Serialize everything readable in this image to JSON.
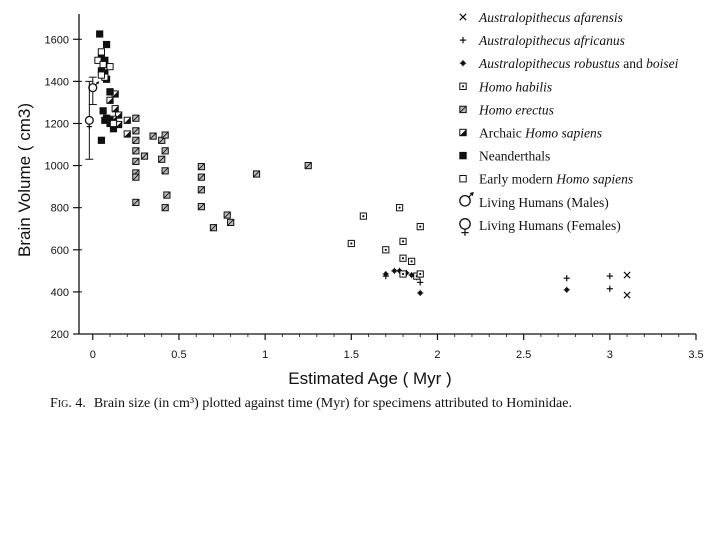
{
  "chart_data": {
    "type": "scatter",
    "xlabel": "Estimated Age ( Myr )",
    "ylabel": "Brain Volume ( cm3)",
    "xlim": [
      -0.08,
      3.5
    ],
    "ylim": [
      200,
      1720
    ],
    "xticks": [
      0,
      0.5,
      1,
      1.5,
      2,
      2.5,
      3,
      3.5
    ],
    "xtick_labels": [
      "0",
      "0.5",
      "1",
      "1.5",
      "2",
      "2.5",
      "3",
      "3.5"
    ],
    "yticks": [
      200,
      400,
      600,
      800,
      1000,
      1200,
      1400,
      1600
    ],
    "ytick_labels": [
      "200",
      "400",
      "600",
      "800",
      "1000",
      "1200",
      "1400",
      "1600"
    ],
    "legend_position": "top-right",
    "series": [
      {
        "name": "Australopithecus afarensis",
        "marker": "x",
        "points": [
          [
            3.1,
            480
          ],
          [
            3.1,
            385
          ]
        ]
      },
      {
        "name": "Australopithecus africanus",
        "marker": "plus",
        "points": [
          [
            2.75,
            465
          ],
          [
            3.0,
            475
          ],
          [
            3.0,
            415
          ],
          [
            1.9,
            445
          ],
          [
            1.7,
            475
          ]
        ]
      },
      {
        "name": "Australopithecus robustus and boisei",
        "marker": "asterisk",
        "points": [
          [
            1.7,
            485
          ],
          [
            1.75,
            500
          ],
          [
            1.78,
            500
          ],
          [
            1.82,
            490
          ],
          [
            1.85,
            480
          ],
          [
            1.88,
            470
          ],
          [
            1.9,
            395
          ],
          [
            2.75,
            410
          ]
        ]
      },
      {
        "name": "Homo habilis",
        "marker": "dot-square",
        "points": [
          [
            1.5,
            630
          ],
          [
            1.57,
            760
          ],
          [
            1.7,
            600
          ],
          [
            1.78,
            800
          ],
          [
            1.8,
            640
          ],
          [
            1.8,
            560
          ],
          [
            1.85,
            545
          ],
          [
            1.88,
            475
          ],
          [
            1.9,
            710
          ],
          [
            1.9,
            485
          ],
          [
            1.8,
            485
          ]
        ]
      },
      {
        "name": "Homo erectus",
        "marker": "hatch-square",
        "points": [
          [
            0.25,
            1225
          ],
          [
            0.25,
            1165
          ],
          [
            0.25,
            1120
          ],
          [
            0.25,
            1070
          ],
          [
            0.25,
            1020
          ],
          [
            0.25,
            965
          ],
          [
            0.25,
            945
          ],
          [
            0.25,
            825
          ],
          [
            0.3,
            1045
          ],
          [
            0.35,
            1140
          ],
          [
            0.4,
            1120
          ],
          [
            0.4,
            1030
          ],
          [
            0.42,
            1145
          ],
          [
            0.42,
            1070
          ],
          [
            0.42,
            975
          ],
          [
            0.43,
            860
          ],
          [
            0.42,
            800
          ],
          [
            0.63,
            995
          ],
          [
            0.63,
            945
          ],
          [
            0.63,
            885
          ],
          [
            0.63,
            805
          ],
          [
            0.7,
            705
          ],
          [
            0.78,
            765
          ],
          [
            0.8,
            730
          ],
          [
            0.95,
            960
          ],
          [
            1.25,
            1000
          ]
        ]
      },
      {
        "name": "Archaic Homo sapiens",
        "marker": "tri-square",
        "points": [
          [
            0.2,
            1215
          ],
          [
            0.15,
            1240
          ],
          [
            0.15,
            1195
          ],
          [
            0.13,
            1270
          ],
          [
            0.13,
            1340
          ],
          [
            0.1,
            1310
          ],
          [
            0.12,
            1220
          ],
          [
            0.2,
            1150
          ],
          [
            0.1,
            1350
          ]
        ]
      },
      {
        "name": "Neanderthals",
        "marker": "filled-square",
        "points": [
          [
            0.04,
            1625
          ],
          [
            0.05,
            1510
          ],
          [
            0.06,
            1480
          ],
          [
            0.05,
            1450
          ],
          [
            0.07,
            1500
          ],
          [
            0.08,
            1575
          ],
          [
            0.07,
            1440
          ],
          [
            0.08,
            1410
          ],
          [
            0.1,
            1350
          ],
          [
            0.06,
            1260
          ],
          [
            0.07,
            1215
          ],
          [
            0.08,
            1225
          ],
          [
            0.1,
            1215
          ],
          [
            0.12,
            1175
          ],
          [
            0.1,
            1200
          ],
          [
            0.05,
            1120
          ]
        ]
      },
      {
        "name": "Early modern Homo sapiens",
        "marker": "open-square",
        "points": [
          [
            0.03,
            1500
          ],
          [
            0.05,
            1540
          ],
          [
            0.06,
            1480
          ],
          [
            0.1,
            1470
          ],
          [
            0.07,
            1420
          ],
          [
            0.05,
            1430
          ],
          [
            0.12,
            1200
          ]
        ]
      },
      {
        "name": "Living Humans (Males)",
        "marker": "male",
        "points": [
          [
            0.0,
            1370
          ]
        ],
        "error": [
          [
            0.0,
            1290,
            1420
          ]
        ]
      },
      {
        "name": "Living Humans (Females)",
        "marker": "female",
        "points": [
          [
            -0.02,
            1215
          ]
        ],
        "error": [
          [
            -0.02,
            1030,
            1400
          ]
        ]
      }
    ]
  },
  "legend_labels": [
    {
      "parts": [
        {
          "t": "Australopithecus afarensis",
          "i": true
        }
      ]
    },
    {
      "parts": [
        {
          "t": "Australopithecus africanus",
          "i": true
        }
      ]
    },
    {
      "parts": [
        {
          "t": "Australopithecus robustus",
          "i": true
        },
        {
          "t": " and ",
          "i": false
        },
        {
          "t": "boisei",
          "i": true
        }
      ]
    },
    {
      "parts": [
        {
          "t": "Homo habilis",
          "i": true
        }
      ]
    },
    {
      "parts": [
        {
          "t": "Homo erectus",
          "i": true
        }
      ]
    },
    {
      "parts": [
        {
          "t": "Archaic ",
          "i": false
        },
        {
          "t": "Homo sapiens",
          "i": true
        }
      ]
    },
    {
      "parts": [
        {
          "t": "Neanderthals",
          "i": false
        }
      ]
    },
    {
      "parts": [
        {
          "t": "Early modern ",
          "i": false
        },
        {
          "t": "Homo sapiens",
          "i": true
        }
      ]
    },
    {
      "parts": [
        {
          "t": "Living Humans (Males)",
          "i": false
        }
      ]
    },
    {
      "parts": [
        {
          "t": "Living Humans (Females)",
          "i": false
        }
      ]
    }
  ],
  "caption": {
    "label": "Fig. 4.",
    "text": "Brain size (in cm³) plotted against time (Myr) for specimens attributed to Hominidae."
  },
  "colors": {
    "ink": "#111111",
    "background": "#ffffff"
  }
}
